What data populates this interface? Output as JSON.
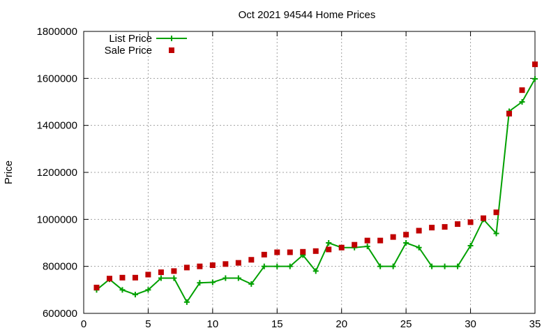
{
  "chart_data": {
    "type": "line",
    "title": "Oct 2021 94544 Home Prices",
    "xlabel": "",
    "ylabel": "Price",
    "xlim": [
      0,
      35
    ],
    "ylim": [
      600000,
      1800000
    ],
    "x_ticks": [
      0,
      5,
      10,
      15,
      20,
      25,
      30,
      35
    ],
    "y_ticks": [
      600000,
      800000,
      1000000,
      1200000,
      1400000,
      1600000,
      1800000
    ],
    "grid": true,
    "legend_position": "top-left",
    "series": [
      {
        "name": "List Price",
        "style": "line+cross",
        "color": "#00a000",
        "x": [
          1,
          2,
          3,
          4,
          5,
          6,
          7,
          8,
          9,
          10,
          11,
          12,
          13,
          14,
          15,
          16,
          17,
          18,
          19,
          20,
          21,
          22,
          23,
          24,
          25,
          26,
          27,
          28,
          29,
          30,
          31,
          32,
          33,
          34,
          35
        ],
        "values": [
          700000,
          745000,
          700000,
          680000,
          700000,
          750000,
          750000,
          648000,
          730000,
          732000,
          750000,
          750000,
          725000,
          800000,
          800000,
          800000,
          848000,
          780000,
          900000,
          880000,
          880000,
          885000,
          800000,
          800000,
          900000,
          880000,
          800000,
          800000,
          800000,
          888000,
          1000000,
          940000,
          1460000,
          1500000,
          1598000
        ]
      },
      {
        "name": "Sale Price",
        "style": "points",
        "color": "#c00000",
        "x": [
          1,
          2,
          3,
          4,
          5,
          6,
          7,
          8,
          9,
          10,
          11,
          12,
          13,
          14,
          15,
          16,
          17,
          18,
          19,
          20,
          21,
          22,
          23,
          24,
          25,
          26,
          27,
          28,
          29,
          30,
          31,
          32,
          33,
          34,
          35
        ],
        "values": [
          710000,
          748000,
          752000,
          752000,
          765000,
          775000,
          780000,
          795000,
          800000,
          805000,
          810000,
          815000,
          828000,
          850000,
          860000,
          860000,
          862000,
          865000,
          872000,
          880000,
          892000,
          910000,
          910000,
          925000,
          935000,
          952000,
          965000,
          968000,
          980000,
          988000,
          1005000,
          1030000,
          1450000,
          1550000,
          1660000
        ]
      }
    ]
  }
}
